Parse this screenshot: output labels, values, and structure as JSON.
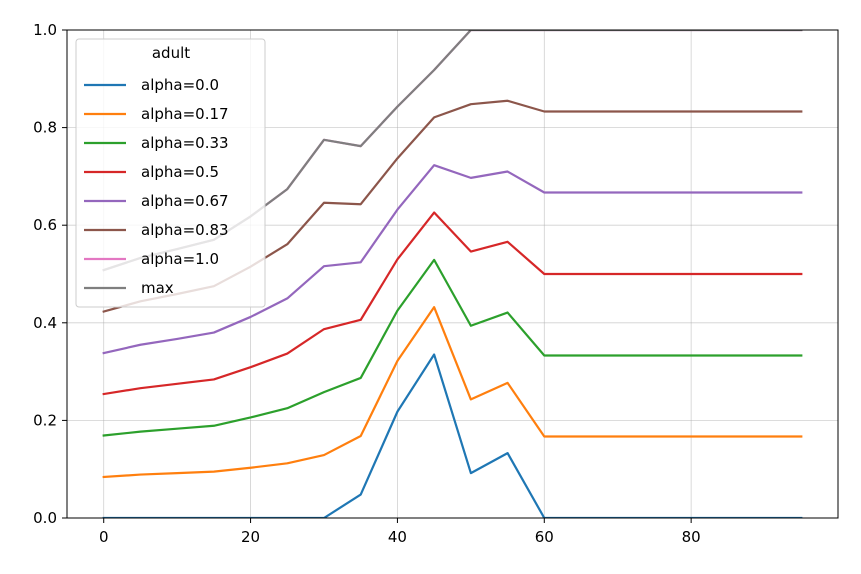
{
  "chart_data": {
    "type": "line",
    "title": "",
    "xlabel": "",
    "ylabel": "",
    "xlim": [
      -5,
      100
    ],
    "ylim": [
      0.0,
      1.0
    ],
    "grid": true,
    "x_ticks": [
      0,
      20,
      40,
      60,
      80
    ],
    "x_tick_labels": [
      "0",
      "20",
      "40",
      "60",
      "80"
    ],
    "y_ticks": [
      0.0,
      0.2,
      0.4,
      0.6,
      0.8,
      1.0
    ],
    "y_tick_labels": [
      "0.0",
      "0.2",
      "0.4",
      "0.6",
      "0.8",
      "1.0"
    ],
    "legend": {
      "title": "adult",
      "placement": "top-left"
    },
    "x": [
      0,
      5,
      10,
      15,
      20,
      25,
      30,
      35,
      40,
      45,
      50,
      55,
      60,
      65,
      70,
      75,
      80,
      85,
      90,
      95
    ],
    "series": [
      {
        "name": "alpha=0.0",
        "color": "#1f77b4",
        "values": [
          0,
          0,
          0,
          0,
          0,
          0,
          0,
          0.048,
          0.218,
          0.335,
          0.092,
          0.133,
          0,
          0,
          0,
          0,
          0,
          0,
          0,
          0
        ]
      },
      {
        "name": "alpha=0.17",
        "color": "#ff7f0e",
        "values": [
          0.084,
          0.089,
          0.092,
          0.095,
          0.103,
          0.112,
          0.129,
          0.168,
          0.322,
          0.432,
          0.243,
          0.277,
          0.167,
          0.167,
          0.167,
          0.167,
          0.167,
          0.167,
          0.167,
          0.167
        ]
      },
      {
        "name": "alpha=0.33",
        "color": "#2ca02c",
        "values": [
          0.169,
          0.177,
          0.183,
          0.189,
          0.206,
          0.225,
          0.258,
          0.287,
          0.425,
          0.529,
          0.394,
          0.421,
          0.333,
          0.333,
          0.333,
          0.333,
          0.333,
          0.333,
          0.333,
          0.333
        ]
      },
      {
        "name": "alpha=0.5",
        "color": "#d62728",
        "values": [
          0.254,
          0.266,
          0.275,
          0.284,
          0.309,
          0.337,
          0.387,
          0.406,
          0.53,
          0.626,
          0.546,
          0.566,
          0.5,
          0.5,
          0.5,
          0.5,
          0.5,
          0.5,
          0.5,
          0.5
        ]
      },
      {
        "name": "alpha=0.67",
        "color": "#9467bd",
        "values": [
          0.338,
          0.355,
          0.367,
          0.38,
          0.412,
          0.45,
          0.516,
          0.524,
          0.632,
          0.723,
          0.697,
          0.71,
          0.667,
          0.667,
          0.667,
          0.667,
          0.667,
          0.667,
          0.667,
          0.667
        ]
      },
      {
        "name": "alpha=0.83",
        "color": "#8c564b",
        "values": [
          0.423,
          0.444,
          0.459,
          0.475,
          0.515,
          0.561,
          0.646,
          0.643,
          0.737,
          0.821,
          0.848,
          0.855,
          0.833,
          0.833,
          0.833,
          0.833,
          0.833,
          0.833,
          0.833,
          0.833
        ]
      },
      {
        "name": "alpha=1.0",
        "color": "#e377c2",
        "values": [
          0.508,
          0.533,
          0.551,
          0.57,
          0.618,
          0.674,
          0.775,
          0.762,
          0.843,
          0.918,
          1.0,
          1.0,
          1.0,
          1.0,
          1.0,
          1.0,
          1.0,
          1.0,
          1.0,
          1.0
        ]
      },
      {
        "name": "max",
        "color": "#7f7f7f",
        "values": [
          0.508,
          0.533,
          0.551,
          0.57,
          0.618,
          0.674,
          0.775,
          0.762,
          0.843,
          0.918,
          1.0,
          1.0,
          1.0,
          1.0,
          1.0,
          1.0,
          1.0,
          1.0,
          1.0,
          1.0
        ]
      }
    ]
  }
}
